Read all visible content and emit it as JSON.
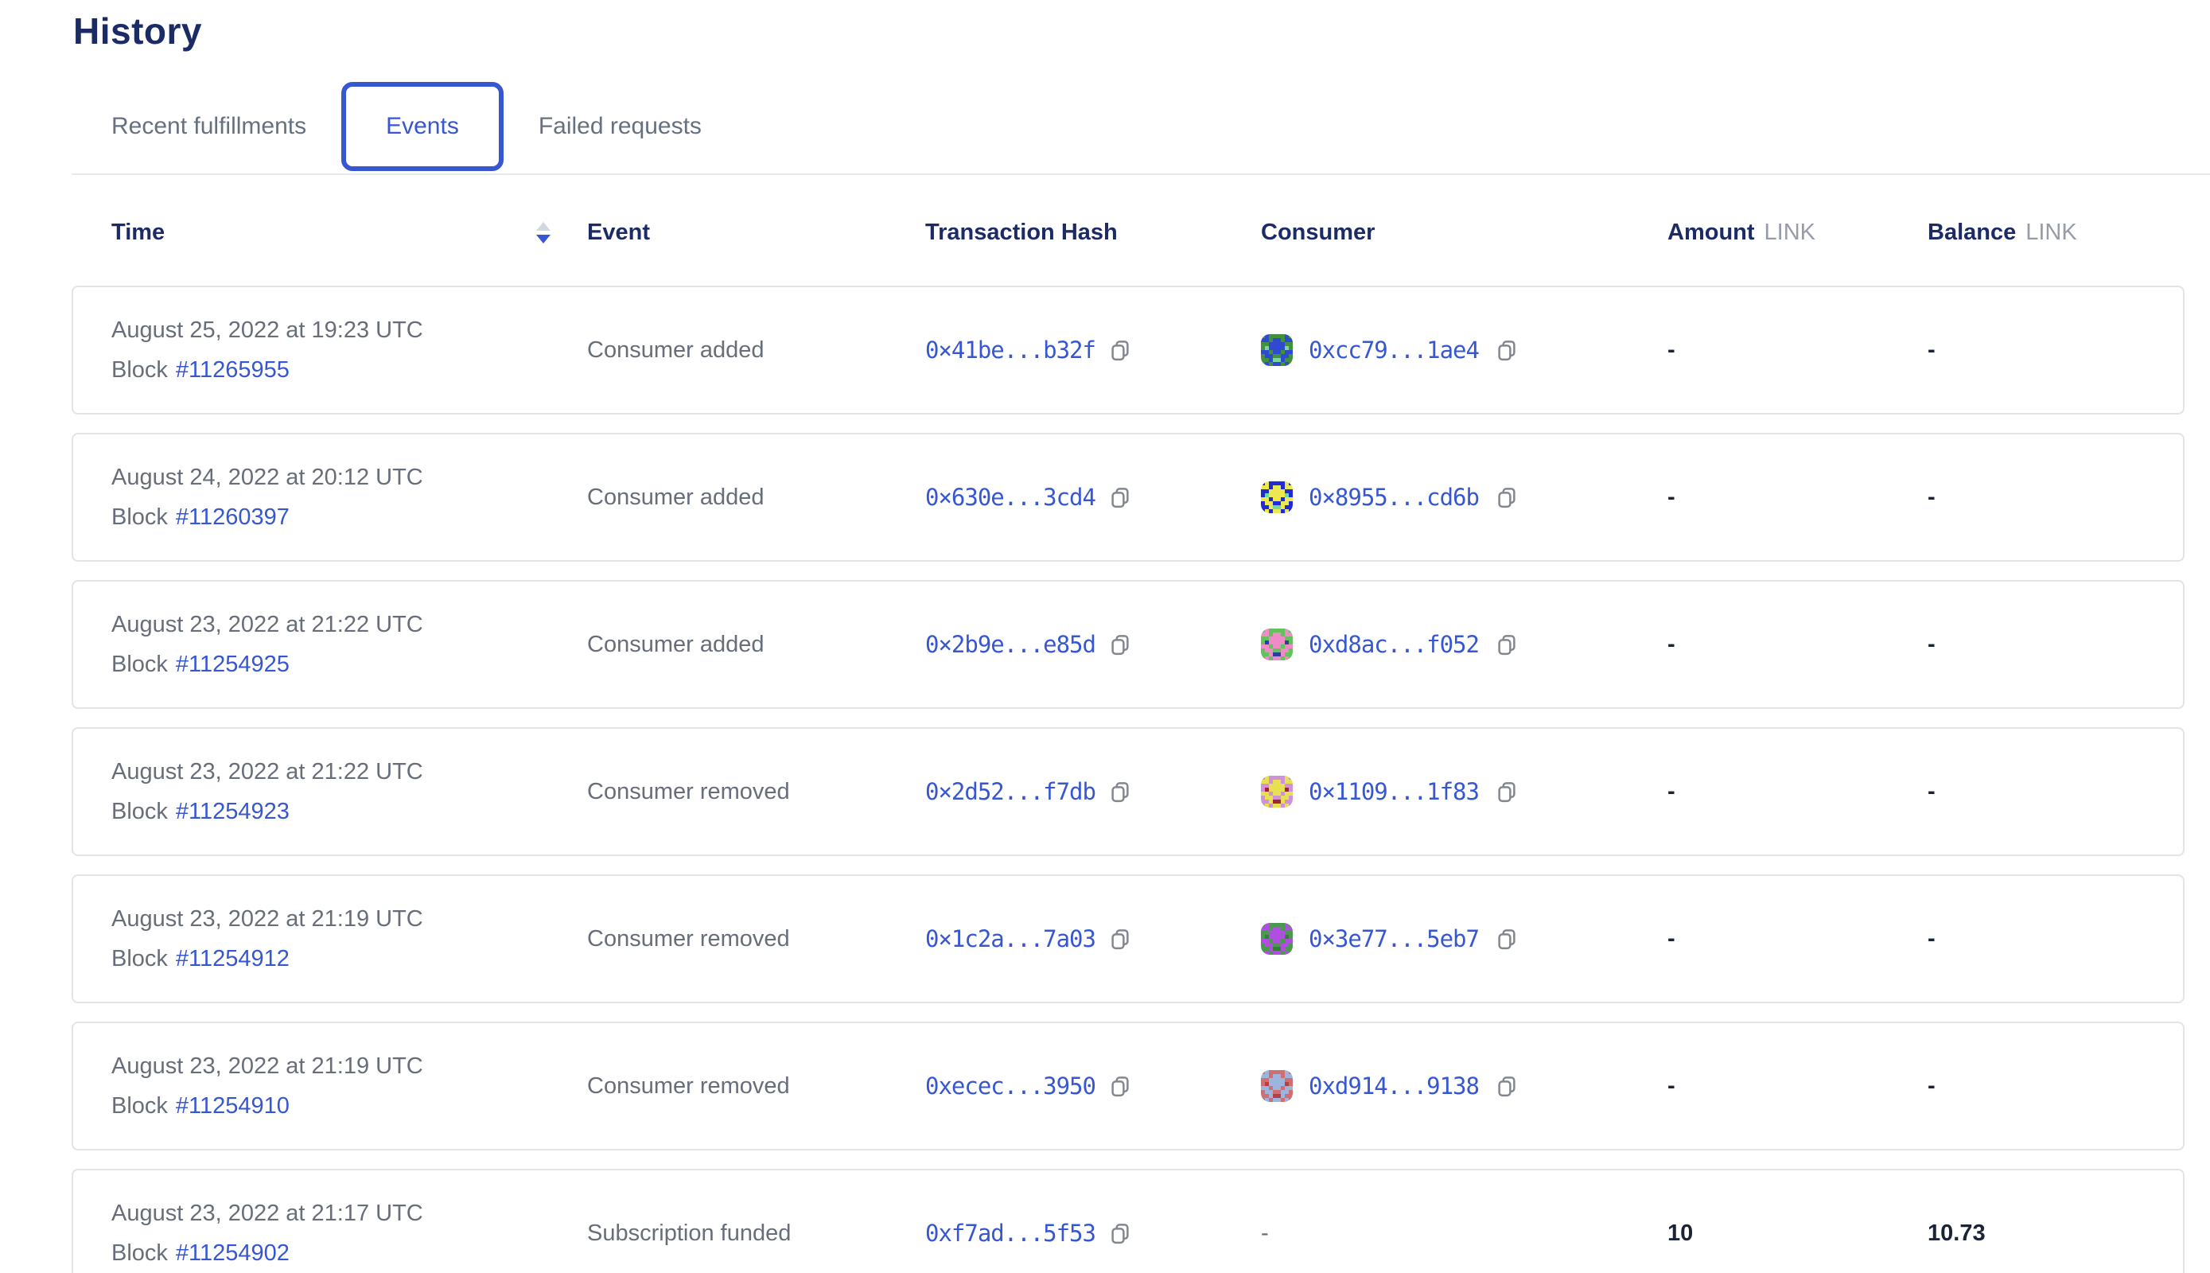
{
  "page": {
    "title": "History"
  },
  "tabs": [
    {
      "label": "Recent fulfillments",
      "active": false
    },
    {
      "label": "Events",
      "active": true
    },
    {
      "label": "Failed requests",
      "active": false
    }
  ],
  "colors": {
    "accent_blue": "#3757d2",
    "heading_navy": "#1b2b65",
    "muted_gray": "#676e7a",
    "unit_gray": "#979da8",
    "card_border": "#e3e4e8"
  },
  "table": {
    "labels": {
      "block": "Block"
    },
    "columns": {
      "time": "Time",
      "event": "Event",
      "tx": "Transaction Hash",
      "consumer": "Consumer",
      "amount": "Amount",
      "amount_unit": "LINK",
      "balance": "Balance",
      "balance_unit": "LINK"
    },
    "rows": [
      {
        "date": "August 25, 2022 at 19:23 UTC",
        "block": "#11265955",
        "event": "Consumer added",
        "tx": "0×41be...b32f",
        "consumer": "0xcc79...1ae4",
        "amount": "-",
        "balance": "-",
        "avatar": {
          "bg": "#43913f",
          "fg": "#2f49d1",
          "spot": "#7ed4a0"
        }
      },
      {
        "date": "August 24, 2022 at 20:12 UTC",
        "block": "#11260397",
        "event": "Consumer added",
        "tx": "0×630e...3cd4",
        "consumer": "0×8955...cd6b",
        "amount": "-",
        "balance": "-",
        "avatar": {
          "bg": "#1f2bd8",
          "fg": "#ede84f",
          "spot": "#6fd8a3"
        }
      },
      {
        "date": "August 23, 2022 at 21:22 UTC",
        "block": "#11254925",
        "event": "Consumer added",
        "tx": "0×2b9e...e85d",
        "consumer": "0xd8ac...f052",
        "amount": "-",
        "balance": "-",
        "avatar": {
          "bg": "#64c25c",
          "fg": "#ef8cc8",
          "spot": "#2a3f9e"
        }
      },
      {
        "date": "August 23, 2022 at 21:22 UTC",
        "block": "#11254923",
        "event": "Consumer removed",
        "tx": "0×2d52...f7db",
        "consumer": "0×1109...1f83",
        "amount": "-",
        "balance": "-",
        "avatar": {
          "bg": "#cf92d8",
          "fg": "#e7e052",
          "spot": "#a3242e"
        }
      },
      {
        "date": "August 23, 2022 at 21:19 UTC",
        "block": "#11254912",
        "event": "Consumer removed",
        "tx": "0×1c2a...7a03",
        "consumer": "0×3e77...5eb7",
        "amount": "-",
        "balance": "-",
        "avatar": {
          "bg": "#4d9850",
          "fg": "#b14ee2",
          "spot": "#3a7a3e"
        }
      },
      {
        "date": "August 23, 2022 at 21:19 UTC",
        "block": "#11254910",
        "event": "Consumer removed",
        "tx": "0xecec...3950",
        "consumer": "0xd914...9138",
        "amount": "-",
        "balance": "-",
        "avatar": {
          "bg": "#cf6f72",
          "fg": "#9db5de",
          "spot": "#b83d44"
        }
      },
      {
        "date": "August 23, 2022 at 21:17 UTC",
        "block": "#11254902",
        "event": "Subscription funded",
        "tx": "0xf7ad...5f53",
        "consumer": "-",
        "amount": "10",
        "balance": "10.73",
        "avatar": null
      }
    ]
  }
}
